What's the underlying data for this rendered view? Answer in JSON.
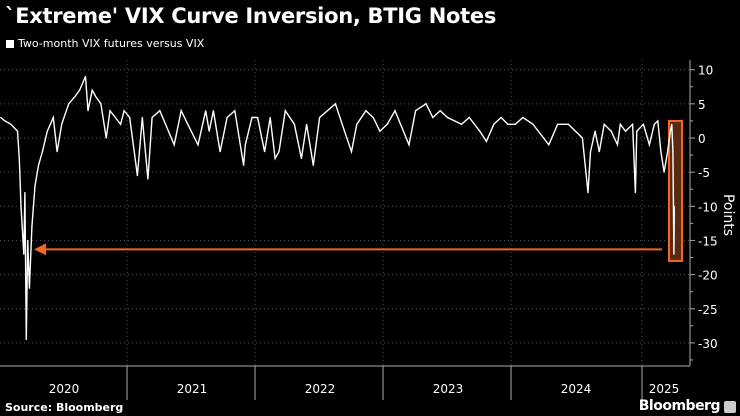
{
  "title": "`Extreme' VIX Curve Inversion, BTIG Notes",
  "source": "Source: Bloomberg",
  "brand": "Bloomberg",
  "colors": {
    "line": "#ffffff",
    "highlight": "#f26522",
    "grid": "#555555"
  },
  "chart_data": {
    "type": "line",
    "title": "`Extreme' VIX Curve Inversion, BTIG Notes",
    "ylabel": "Points",
    "xlabel": "",
    "ylim": [
      -33,
      12
    ],
    "yticks": [
      10,
      5,
      0,
      -5,
      -10,
      -15,
      -20,
      -25,
      -30
    ],
    "xtick_labels": [
      "2020",
      "2021",
      "2022",
      "2023",
      "2024",
      "2025"
    ],
    "grid": true,
    "legend_position": "top-left",
    "annotations": [
      "arrow pointing left at about -16.5 from highlighted latest reading",
      "highlight box around April 2025 drop"
    ],
    "series": [
      {
        "name": "Two-month VIX futures versus VIX",
        "points": [
          [
            "2020-01-03",
            3
          ],
          [
            "2020-01-15",
            2.5
          ],
          [
            "2020-02-01",
            2
          ],
          [
            "2020-02-20",
            1
          ],
          [
            "2020-02-25",
            -3
          ],
          [
            "2020-03-01",
            -10
          ],
          [
            "2020-03-09",
            -17
          ],
          [
            "2020-03-12",
            -8
          ],
          [
            "2020-03-16",
            -29.5
          ],
          [
            "2020-03-20",
            -15
          ],
          [
            "2020-03-25",
            -22
          ],
          [
            "2020-04-01",
            -13
          ],
          [
            "2020-04-10",
            -7
          ],
          [
            "2020-04-20",
            -4
          ],
          [
            "2020-05-01",
            -2
          ],
          [
            "2020-05-15",
            1
          ],
          [
            "2020-06-01",
            3
          ],
          [
            "2020-06-12",
            -2
          ],
          [
            "2020-06-25",
            2
          ],
          [
            "2020-07-15",
            5
          ],
          [
            "2020-08-01",
            6
          ],
          [
            "2020-08-15",
            7
          ],
          [
            "2020-09-01",
            9
          ],
          [
            "2020-09-08",
            4
          ],
          [
            "2020-09-20",
            7
          ],
          [
            "2020-10-01",
            6
          ],
          [
            "2020-10-15",
            5
          ],
          [
            "2020-10-30",
            0
          ],
          [
            "2020-11-10",
            4
          ],
          [
            "2020-11-25",
            3
          ],
          [
            "2020-12-10",
            2
          ],
          [
            "2020-12-20",
            4
          ],
          [
            "2021-01-05",
            3
          ],
          [
            "2021-01-27",
            -5.5
          ],
          [
            "2021-02-10",
            3
          ],
          [
            "2021-02-26",
            -6
          ],
          [
            "2021-03-10",
            3
          ],
          [
            "2021-04-01",
            4
          ],
          [
            "2021-05-12",
            -1
          ],
          [
            "2021-06-01",
            4
          ],
          [
            "2021-06-20",
            2
          ],
          [
            "2021-07-19",
            -1
          ],
          [
            "2021-08-10",
            4
          ],
          [
            "2021-08-20",
            1
          ],
          [
            "2021-09-01",
            4
          ],
          [
            "2021-09-20",
            -2
          ],
          [
            "2021-10-10",
            3
          ],
          [
            "2021-11-01",
            4
          ],
          [
            "2021-11-26",
            -4
          ],
          [
            "2021-12-01",
            -1
          ],
          [
            "2021-12-20",
            3
          ],
          [
            "2022-01-05",
            3
          ],
          [
            "2022-01-25",
            -2
          ],
          [
            "2022-02-10",
            3
          ],
          [
            "2022-02-24",
            -3
          ],
          [
            "2022-03-07",
            -2
          ],
          [
            "2022-03-25",
            4
          ],
          [
            "2022-04-20",
            2
          ],
          [
            "2022-05-10",
            -3
          ],
          [
            "2022-05-25",
            2
          ],
          [
            "2022-06-13",
            -4
          ],
          [
            "2022-07-01",
            3
          ],
          [
            "2022-08-15",
            5
          ],
          [
            "2022-09-10",
            1
          ],
          [
            "2022-09-30",
            -2
          ],
          [
            "2022-10-15",
            2
          ],
          [
            "2022-11-10",
            4
          ],
          [
            "2022-12-01",
            3
          ],
          [
            "2022-12-20",
            1
          ],
          [
            "2023-01-10",
            2
          ],
          [
            "2023-02-01",
            4
          ],
          [
            "2023-03-13",
            -1
          ],
          [
            "2023-04-01",
            4
          ],
          [
            "2023-05-01",
            5
          ],
          [
            "2023-05-20",
            3
          ],
          [
            "2023-06-10",
            4
          ],
          [
            "2023-07-01",
            3
          ],
          [
            "2023-08-10",
            2
          ],
          [
            "2023-09-01",
            3
          ],
          [
            "2023-10-01",
            1
          ],
          [
            "2023-10-20",
            -0.5
          ],
          [
            "2023-11-10",
            2
          ],
          [
            "2023-12-01",
            3
          ],
          [
            "2023-12-20",
            2
          ],
          [
            "2024-01-10",
            2
          ],
          [
            "2024-02-01",
            3
          ],
          [
            "2024-03-01",
            2
          ],
          [
            "2024-04-15",
            -1
          ],
          [
            "2024-05-10",
            2
          ],
          [
            "2024-06-10",
            2
          ],
          [
            "2024-07-20",
            0
          ],
          [
            "2024-08-05",
            -8
          ],
          [
            "2024-08-12",
            -2
          ],
          [
            "2024-08-25",
            1
          ],
          [
            "2024-09-06",
            -2
          ],
          [
            "2024-09-20",
            2
          ],
          [
            "2024-10-10",
            1
          ],
          [
            "2024-10-28",
            -1
          ],
          [
            "2024-11-05",
            2
          ],
          [
            "2024-11-20",
            1
          ],
          [
            "2024-12-10",
            2
          ],
          [
            "2024-12-18",
            -8
          ],
          [
            "2024-12-22",
            1
          ],
          [
            "2025-01-10",
            2
          ],
          [
            "2025-01-27",
            -1
          ],
          [
            "2025-02-10",
            2
          ],
          [
            "2025-02-20",
            2.5
          ],
          [
            "2025-03-01",
            -2
          ],
          [
            "2025-03-10",
            -5
          ],
          [
            "2025-03-20",
            -2
          ],
          [
            "2025-03-28",
            1
          ],
          [
            "2025-04-01",
            2
          ],
          [
            "2025-04-04",
            -2
          ],
          [
            "2025-04-07",
            -17
          ],
          [
            "2025-04-08",
            -10
          ]
        ]
      }
    ]
  }
}
